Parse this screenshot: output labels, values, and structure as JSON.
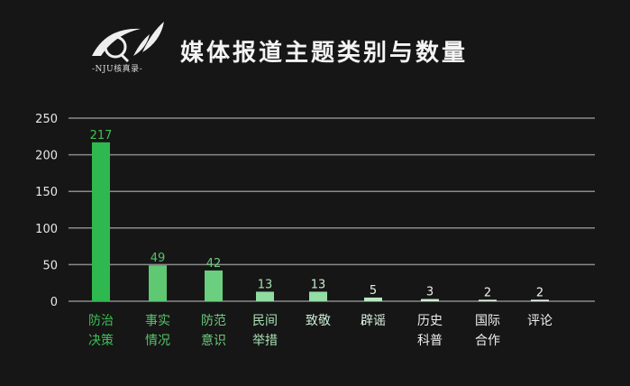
{
  "header": {
    "title": "媒体报道主题类别与数量",
    "logo_text": "-NJU核真录-"
  },
  "chart_data": {
    "type": "bar",
    "title": "媒体报道主题类别与数量",
    "categories": [
      [
        "防治",
        "决策"
      ],
      [
        "事实",
        "情况"
      ],
      [
        "防范",
        "意识"
      ],
      [
        "民间",
        "举措"
      ],
      [
        "致敬"
      ],
      [
        "辟谣"
      ],
      [
        "历史",
        "科普"
      ],
      [
        "国际",
        "合作"
      ],
      [
        "评论"
      ]
    ],
    "values": [
      217,
      49,
      42,
      13,
      13,
      5,
      3,
      2,
      2
    ],
    "ylim": [
      0,
      250
    ],
    "yticks": [
      0,
      50,
      100,
      150,
      200,
      250
    ],
    "grid": true,
    "colors": [
      "#2fb84f",
      "#5ec873",
      "#6acf7f",
      "#8fdba0",
      "#94dda5",
      "#b8e8c2",
      "#cfeed6",
      "#e2f4e6",
      "#e8f6eb"
    ],
    "label_colors": [
      "#3fbf55",
      "#55c468",
      "#6ccb7c",
      "#a8e0b4",
      "#c9ecd1",
      "#dff3e3",
      "#ececec",
      "#f0f0f0",
      "#f2f2f2"
    ]
  }
}
